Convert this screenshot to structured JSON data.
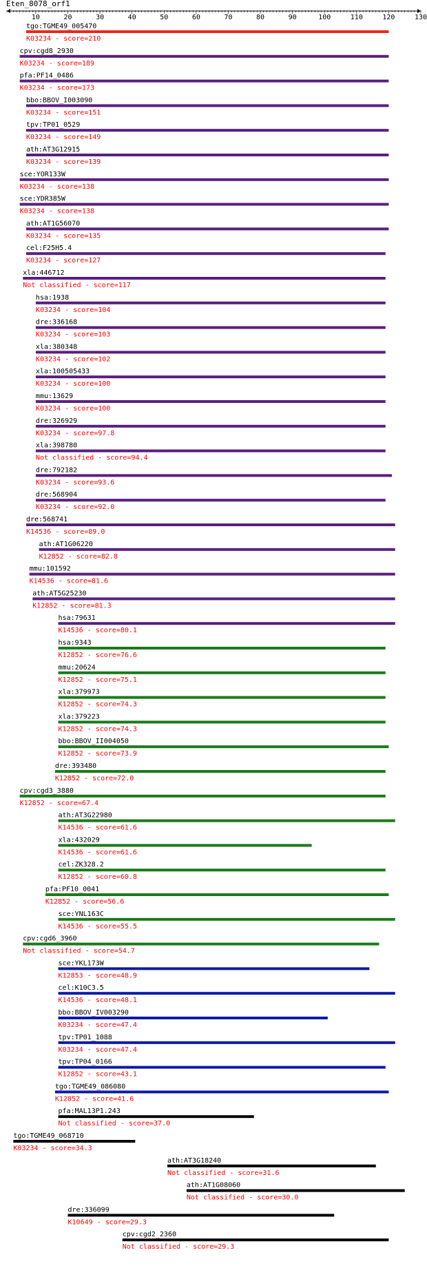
{
  "chart_data": {
    "type": "bar",
    "title": "Eten_8078_orf1",
    "axis": {
      "min": 1,
      "max": 130,
      "ticks": [
        10,
        20,
        30,
        40,
        50,
        60,
        70,
        80,
        90,
        100,
        110,
        120,
        130
      ]
    },
    "colors": {
      "red": "#e8281e",
      "purple": "#5a1f7e",
      "green": "#1a7a1a",
      "blue": "#0d1aa6",
      "black": "#000000",
      "label": "#000000",
      "score": "#ff0000"
    },
    "hits": [
      {
        "name": "tgo:TGME49_005470",
        "desc": "K03234 - score=210",
        "start": 7,
        "end": 120,
        "color": "red"
      },
      {
        "name": "cpv:cgd8_2930",
        "desc": "K03234 - score=189",
        "start": 5,
        "end": 120,
        "color": "purple"
      },
      {
        "name": "pfa:PF14_0486",
        "desc": "K03234 - score=173",
        "start": 5,
        "end": 120,
        "color": "purple"
      },
      {
        "name": "bbo:BBOV_I003090",
        "desc": "K03234 - score=151",
        "start": 7,
        "end": 120,
        "color": "purple"
      },
      {
        "name": "tpv:TP01_0529",
        "desc": "K03234 - score=149",
        "start": 7,
        "end": 120,
        "color": "purple"
      },
      {
        "name": "ath:AT3G12915",
        "desc": "K03234 - score=139",
        "start": 7,
        "end": 120,
        "color": "purple"
      },
      {
        "name": "sce:YOR133W",
        "desc": "K03234 - score=138",
        "start": 5,
        "end": 120,
        "color": "purple"
      },
      {
        "name": "sce:YDR385W",
        "desc": "K03234 - score=138",
        "start": 5,
        "end": 120,
        "color": "purple"
      },
      {
        "name": "ath:AT1G56070",
        "desc": "K03234 - score=135",
        "start": 7,
        "end": 120,
        "color": "purple"
      },
      {
        "name": "cel:F25H5.4",
        "desc": "K03234 - score=127",
        "start": 7,
        "end": 119,
        "color": "purple"
      },
      {
        "name": "xla:446712",
        "desc": "Not classified - score=117",
        "start": 6,
        "end": 119,
        "color": "purple"
      },
      {
        "name": "hsa:1938",
        "desc": "K03234 - score=104",
        "start": 10,
        "end": 119,
        "color": "purple"
      },
      {
        "name": "dre:336168",
        "desc": "K03234 - score=103",
        "start": 10,
        "end": 119,
        "color": "purple"
      },
      {
        "name": "xla:380348",
        "desc": "K03234 - score=102",
        "start": 10,
        "end": 119,
        "color": "purple"
      },
      {
        "name": "xla:100505433",
        "desc": "K03234 - score=100",
        "start": 10,
        "end": 119,
        "color": "purple"
      },
      {
        "name": "mmu:13629",
        "desc": "K03234 - score=100",
        "start": 10,
        "end": 119,
        "color": "purple"
      },
      {
        "name": "dre:326929",
        "desc": "K03234 - score=97.8",
        "start": 10,
        "end": 119,
        "color": "purple"
      },
      {
        "name": "xla:398780",
        "desc": "Not classified - score=94.4",
        "start": 10,
        "end": 119,
        "color": "purple"
      },
      {
        "name": "dre:792182",
        "desc": "K03234 - score=93.6",
        "start": 10,
        "end": 121,
        "color": "purple"
      },
      {
        "name": "dre:568904",
        "desc": "K03234 - score=92.0",
        "start": 10,
        "end": 119,
        "color": "purple"
      },
      {
        "name": "dre:568741",
        "desc": "K14536 - score=89.0",
        "start": 7,
        "end": 122,
        "color": "purple"
      },
      {
        "name": "ath:AT1G06220",
        "desc": "K12852 - score=82.8",
        "start": 11,
        "end": 122,
        "color": "purple"
      },
      {
        "name": "mmu:101592",
        "desc": "K14536 - score=81.6",
        "start": 8,
        "end": 122,
        "color": "purple"
      },
      {
        "name": "ath:AT5G25230",
        "desc": "K12852 - score=81.3",
        "start": 9,
        "end": 122,
        "color": "purple"
      },
      {
        "name": "hsa:79631",
        "desc": "K14536 - score=80.1",
        "start": 17,
        "end": 122,
        "color": "purple"
      },
      {
        "name": "hsa:9343",
        "desc": "K12852 - score=76.6",
        "start": 17,
        "end": 119,
        "color": "green"
      },
      {
        "name": "mmu:20624",
        "desc": "K12852 - score=75.1",
        "start": 17,
        "end": 119,
        "color": "green"
      },
      {
        "name": "xla:379973",
        "desc": "K12852 - score=74.3",
        "start": 17,
        "end": 119,
        "color": "green"
      },
      {
        "name": "xla:379223",
        "desc": "K12852 - score=74.3",
        "start": 17,
        "end": 119,
        "color": "green"
      },
      {
        "name": "bbo:BBOV_II004050",
        "desc": "K12852 - score=73.9",
        "start": 17,
        "end": 120,
        "color": "green"
      },
      {
        "name": "dre:393480",
        "desc": "K12852 - score=72.0",
        "start": 16,
        "end": 119,
        "color": "green"
      },
      {
        "name": "cpv:cgd3_3880",
        "desc": "K12852 - score=67.4",
        "start": 5,
        "end": 119,
        "color": "green"
      },
      {
        "name": "ath:AT3G22980",
        "desc": "K14536 - score=61.6",
        "start": 17,
        "end": 122,
        "color": "green"
      },
      {
        "name": "xla:432029",
        "desc": "K14536 - score=61.6",
        "start": 17,
        "end": 96,
        "color": "green"
      },
      {
        "name": "cel:ZK328.2",
        "desc": "K12852 - score=60.8",
        "start": 17,
        "end": 119,
        "color": "green"
      },
      {
        "name": "pfa:PF10_0041",
        "desc": "K12852 - score=56.6",
        "start": 13,
        "end": 120,
        "color": "green"
      },
      {
        "name": "sce:YNL163C",
        "desc": "K14536 - score=55.5",
        "start": 17,
        "end": 122,
        "color": "green"
      },
      {
        "name": "cpv:cgd6_3960",
        "desc": "Not classified - score=54.7",
        "start": 6,
        "end": 117,
        "color": "green"
      },
      {
        "name": "sce:YKL173W",
        "desc": "K12853 - score=48.9",
        "start": 17,
        "end": 114,
        "color": "blue"
      },
      {
        "name": "cel:K10C3.5",
        "desc": "K14536 - score=48.1",
        "start": 17,
        "end": 122,
        "color": "blue"
      },
      {
        "name": "bbo:BBOV_IV003290",
        "desc": "K03234 - score=47.4",
        "start": 17,
        "end": 101,
        "color": "blue"
      },
      {
        "name": "tpv:TP01_1088",
        "desc": "K03234 - score=47.4",
        "start": 17,
        "end": 122,
        "color": "blue"
      },
      {
        "name": "tpv:TP04_0166",
        "desc": "K12852 - score=43.1",
        "start": 17,
        "end": 119,
        "color": "blue"
      },
      {
        "name": "tgo:TGME49_086080",
        "desc": "K12852 - score=41.6",
        "start": 16,
        "end": 120,
        "color": "blue"
      },
      {
        "name": "pfa:MAL13P1.243",
        "desc": "Not classified - score=37.0",
        "start": 17,
        "end": 78,
        "color": "black"
      },
      {
        "name": "tgo:TGME49_068710",
        "desc": "K03234 - score=34.3",
        "start": 3,
        "end": 41,
        "color": "black"
      },
      {
        "name": "ath:AT3G18240",
        "desc": "Not classified - score=31.6",
        "start": 51,
        "end": 116,
        "color": "black"
      },
      {
        "name": "ath:AT1G08060",
        "desc": "Not classified - score=30.0",
        "start": 57,
        "end": 125,
        "color": "black"
      },
      {
        "name": "dre:336099",
        "desc": "K10649 - score=29.3",
        "start": 20,
        "end": 103,
        "color": "black"
      },
      {
        "name": "cpv:cgd2_2360",
        "desc": "Not classified - score=29.3",
        "start": 37,
        "end": 120,
        "color": "black"
      }
    ]
  }
}
